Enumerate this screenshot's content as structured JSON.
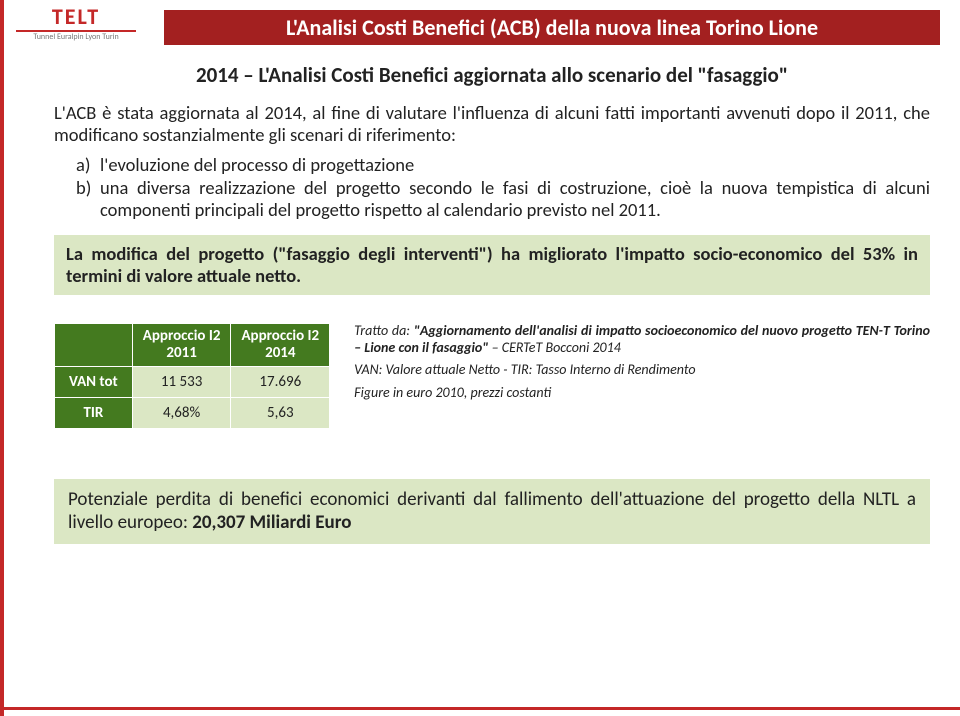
{
  "logo": {
    "main": "TELT",
    "sub": "Tunnel Euralpin Lyon Turin"
  },
  "header": "L'Analisi Costi Benefici (ACB) della nuova linea Torino Lione",
  "subtitle": "2014 – L'Analisi Costi Benefici aggiornata allo scenario del \"fasaggio\"",
  "intro": "L'ACB è stata aggiornata al 2014, al fine di valutare l'influenza di alcuni fatti importanti avvenuti dopo il 2011, che modificano sostanzialmente gli scenari di riferimento:",
  "list": {
    "a": {
      "label": "a)",
      "text": "l'evoluzione del processo di progettazione"
    },
    "b": {
      "label": "b)",
      "text": "una diversa realizzazione del progetto secondo le fasi di costruzione, cioè la nuova tempistica di alcuni componenti principali del progetto rispetto al calendario previsto nel 2011."
    }
  },
  "highlight": "La modifica del progetto (\"fasaggio degli interventi\") ha migliorato l'impatto socio-economico del 53% in termini di valore attuale netto.",
  "table": {
    "headers": {
      "empty": "",
      "c1_l1": "Approccio I2",
      "c1_l2": "2011",
      "c2_l1": "Approccio I2",
      "c2_l2": "2014"
    },
    "rows": {
      "r1": {
        "label": "VAN tot",
        "v1": "11 533",
        "v2": "17.696"
      },
      "r2": {
        "label": "TIR",
        "v1": "4,68%",
        "v2": "5,63"
      }
    }
  },
  "caption": {
    "line1_lead": "Tratto da: ",
    "line1_quote": "\"Aggiornamento dell'analisi di impatto socioeconomico del nuovo progetto TEN-T Torino – Lione con il fasaggio\"",
    "line1_src": " – CERTeT Bocconi 2014",
    "line2": "VAN: Valore attuale Netto - TIR: Tasso Interno di Rendimento",
    "line3": "Figure in euro 2010, prezzi costanti"
  },
  "footer": {
    "text_pre": "Potenziale perdita di benefici economici derivanti dal fallimento dell'attuazione del progetto della NLTL a livello europeo: ",
    "text_em": "20,307 Miliardi Euro"
  }
}
